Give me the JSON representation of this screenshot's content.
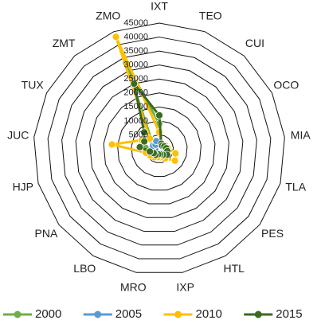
{
  "chart_data": {
    "type": "radar",
    "categories": [
      "IXT",
      "TEO",
      "CUI",
      "OCO",
      "MIA",
      "TLA",
      "PES",
      "HTL",
      "IXP",
      "MRO",
      "LBO",
      "PNA",
      "HJP",
      "JUC",
      "TUX",
      "ZMT",
      "ZMO"
    ],
    "series": [
      {
        "name": "2000",
        "color": "#70ad47",
        "values": [
          9000,
          2000,
          1500,
          1500,
          2000,
          2500,
          2500,
          2000,
          1500,
          1500,
          1500,
          1500,
          2000,
          5000,
          6000,
          4000,
          33000
        ]
      },
      {
        "name": "2005",
        "color": "#5b9bd5",
        "values": [
          2000,
          1500,
          1500,
          1500,
          1500,
          2000,
          2000,
          1500,
          1500,
          1500,
          1500,
          1500,
          1500,
          2500,
          2500,
          2000,
          3000
        ]
      },
      {
        "name": "2010",
        "color": "#ffc000",
        "values": [
          6000,
          2000,
          2000,
          2500,
          3000,
          6000,
          7000,
          4000,
          3000,
          3000,
          3500,
          4000,
          5000,
          17000,
          7000,
          5000,
          43000
        ]
      },
      {
        "name": "2015",
        "color": "#3a6b21",
        "values": [
          12000,
          2000,
          1500,
          2000,
          2500,
          3000,
          3500,
          2500,
          2000,
          2000,
          2500,
          2500,
          3500,
          7000,
          6000,
          8000,
          25000
        ]
      }
    ],
    "rlim": [
      0,
      45000
    ],
    "rticks": [
      0,
      5000,
      10000,
      15000,
      20000,
      25000,
      30000,
      35000,
      40000,
      45000
    ],
    "grid": true
  }
}
